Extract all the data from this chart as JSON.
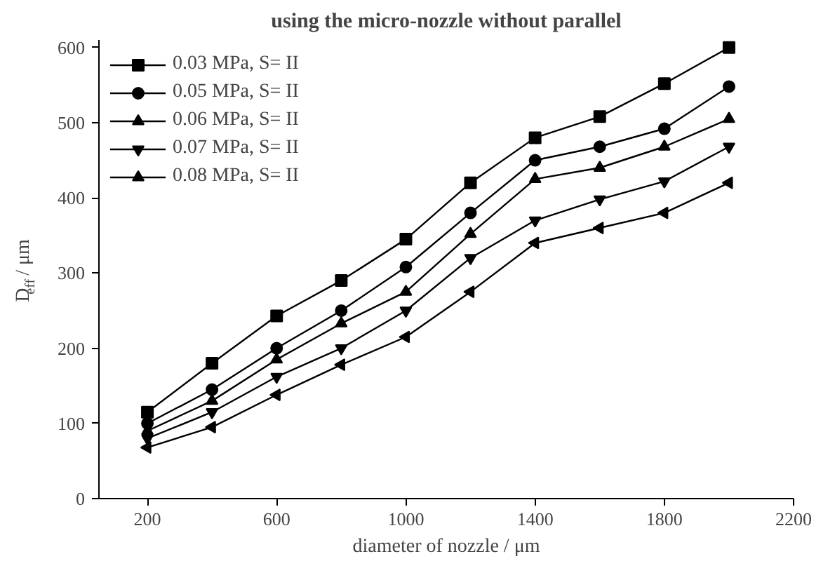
{
  "chart_data": {
    "type": "line",
    "title": "using the micro-nozzle without parallel",
    "xlabel": "diameter of nozzle / μm",
    "ylabel": "D$_{eff}$ / μm",
    "x": [
      200,
      400,
      600,
      800,
      1000,
      1200,
      1400,
      1600,
      1800,
      2000
    ],
    "series": [
      {
        "name": "0.03 MPa, S= II",
        "color": "#000000",
        "marker": "square",
        "values": [
          115,
          180,
          243,
          290,
          345,
          420,
          480,
          508,
          552,
          600
        ]
      },
      {
        "name": "0.05 MPa, S= II",
        "color": "#000000",
        "marker": "circle",
        "values": [
          100,
          145,
          200,
          250,
          308,
          380,
          450,
          468,
          492,
          548
        ]
      },
      {
        "name": "0.06 MPa, S= II",
        "color": "#000000",
        "marker": "triangle",
        "values": [
          90,
          130,
          185,
          233,
          275,
          352,
          425,
          440,
          468,
          505
        ]
      },
      {
        "name": "0.07 MPa, S= II",
        "color": "#000000",
        "marker": "triangle-down",
        "values": [
          80,
          115,
          162,
          200,
          250,
          320,
          370,
          398,
          422,
          468
        ]
      },
      {
        "name": "0.08 MPa, S= II",
        "color": "#000000",
        "marker": "triangle-left",
        "values": [
          68,
          95,
          138,
          178,
          215,
          275,
          340,
          360,
          380,
          420
        ]
      }
    ],
    "xlim": [
      50,
      2200
    ],
    "ylim": [
      0,
      610
    ],
    "xticks": [
      200,
      600,
      1000,
      1400,
      1800,
      2200
    ],
    "yticks": [
      0,
      100,
      200,
      300,
      400,
      500,
      600
    ],
    "grid": false,
    "legend": "top left",
    "line_style": "solid"
  }
}
